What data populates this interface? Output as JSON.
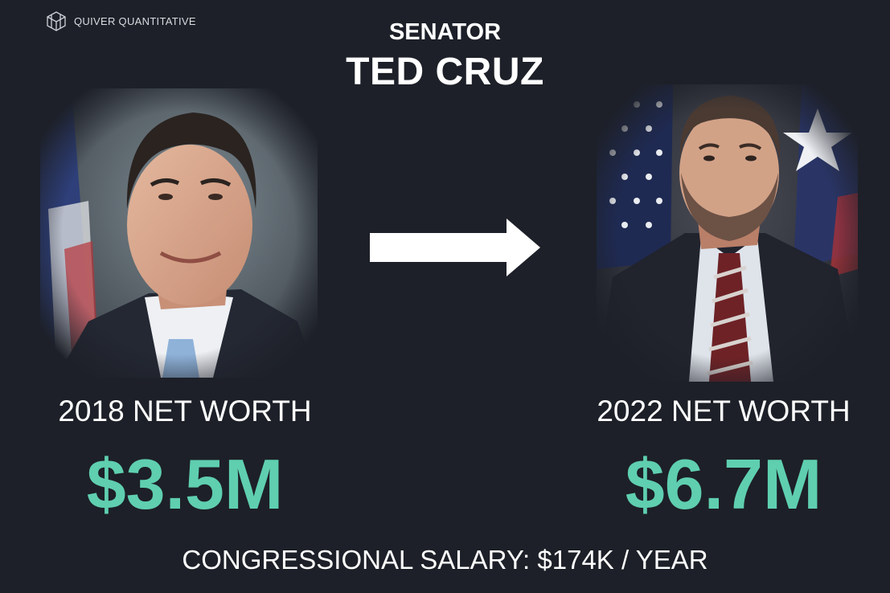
{
  "brand": {
    "name": "QUIVER QUANTITATIVE",
    "icon": "quiver-logo-icon"
  },
  "header": {
    "role": "SENATOR",
    "name": "TED CRUZ"
  },
  "left": {
    "year_label": "2018 NET WORTH",
    "value": "$3.5M"
  },
  "right": {
    "year_label": "2022 NET WORTH",
    "value": "$6.7M"
  },
  "arrow_icon": "arrow-right-icon",
  "footer": {
    "text": "CONGRESSIONAL SALARY: $174K / YEAR"
  },
  "colors": {
    "background": "#1d2028",
    "accent": "#5fcfb0",
    "text": "#ffffff"
  }
}
